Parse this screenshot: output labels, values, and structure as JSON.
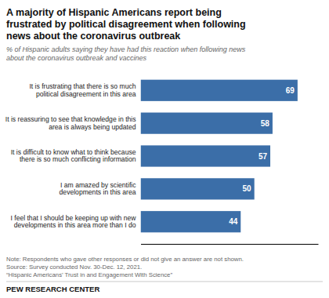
{
  "chart_data": {
    "type": "bar",
    "orientation": "horizontal",
    "title": "A majority of Hispanic Americans report being\nfrustrated by political disagreement when following\nnews about the coronavirus outbreak",
    "subtitle": "% of Hispanic adults saying they have had this reaction when following news\nabout the coronavirus outbreak and vaccines",
    "categories": [
      "It is frustrating that there is so much\npolitical disagreement in this area",
      "It is reassuring to see that knowledge in this\narea is always being updated",
      "It is difficult to know what to think because\nthere is so much conflicting information",
      "I am amazed by scientific\ndevelopments in this area",
      "I feel that I should be keeping up with new\ndevelopments in this area more than I do"
    ],
    "values": [
      69,
      58,
      57,
      50,
      44
    ],
    "color": "#3b6ea8",
    "xlim": [
      0,
      78
    ],
    "xticks": [],
    "grid": false,
    "data_labels": true,
    "tick_labels": "y",
    "notes": [
      "Note: Respondents who gave other responses or did not give an answer are not shown.",
      "Source: Survey conducted Nov. 30-Dec. 12, 2021.",
      "“Hispanic Americans’ Trust in and Engagement With Science”"
    ],
    "source": "PEW RESEARCH CENTER"
  }
}
